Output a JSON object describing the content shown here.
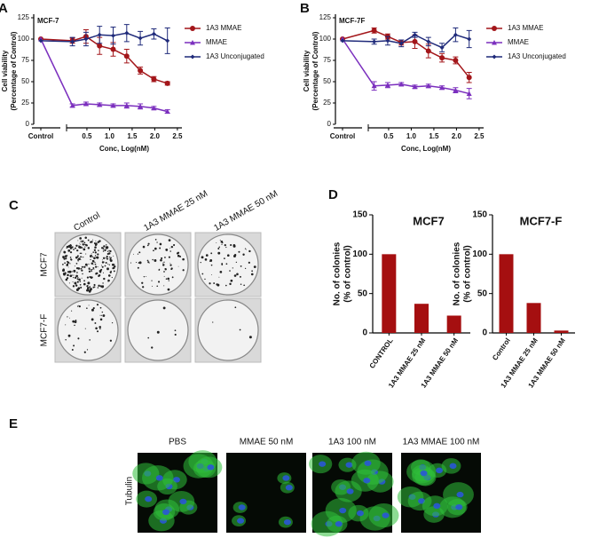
{
  "chart_data": [
    {
      "type": "line",
      "panel": "A",
      "title": "MCF-7",
      "xlabel": "Conc, Log(nM)",
      "ylabel": [
        "Cell viability",
        "(Percentage of Control)"
      ],
      "control_label": "Control",
      "x": [
        0.18,
        0.48,
        0.78,
        1.08,
        1.38,
        1.68,
        1.98,
        2.28
      ],
      "xlim": [
        0.05,
        2.6
      ],
      "xticks": [
        0.5,
        {
          "value": 1,
          "label": "1.0"
        },
        1.5,
        {
          "value": 2,
          "label": "2.0"
        },
        2.5
      ],
      "ylim": [
        0,
        125
      ],
      "yticks": [
        0,
        25,
        50,
        75,
        100,
        125
      ],
      "series": [
        {
          "name": "1A3 MMAE",
          "color": "#a3161a",
          "marker": "circle",
          "control": 100,
          "values": [
            98,
            103,
            92,
            88,
            80,
            63,
            53,
            48
          ],
          "errors": [
            3,
            8,
            10,
            8,
            8,
            4,
            3,
            2
          ]
        },
        {
          "name": "MMAE",
          "color": "#7b2fbe",
          "marker": "triangle",
          "control": 100,
          "values": [
            22,
            24,
            23,
            22,
            22,
            21,
            19,
            15
          ],
          "errors": [
            2,
            2,
            2,
            2,
            3,
            3,
            2,
            2
          ]
        },
        {
          "name": "1A3 Unconjugated",
          "color": "#1f2a7a",
          "marker": "diamond",
          "control": 98,
          "values": [
            97,
            100,
            105,
            104,
            107,
            101,
            106,
            98
          ],
          "errors": [
            5,
            8,
            10,
            10,
            10,
            8,
            6,
            15
          ]
        }
      ]
    },
    {
      "type": "line",
      "panel": "B",
      "title": "MCF-7F",
      "xlabel": "Conc, Log(nM)",
      "ylabel": [
        "Cell viability",
        "(Percentage of Control)"
      ],
      "control_label": "Control",
      "x": [
        0.18,
        0.48,
        0.78,
        1.08,
        1.38,
        1.68,
        1.98,
        2.28
      ],
      "xlim": [
        0.05,
        2.6
      ],
      "xticks": [
        0.5,
        {
          "value": 1,
          "label": "1.0"
        },
        1.5,
        {
          "value": 2,
          "label": "2.0"
        },
        2.5
      ],
      "ylim": [
        0,
        125
      ],
      "yticks": [
        0,
        25,
        50,
        75,
        100,
        125
      ],
      "series": [
        {
          "name": "1A3 MMAE",
          "color": "#a3161a",
          "marker": "circle",
          "control": 100,
          "values": [
            110,
            103,
            96,
            97,
            86,
            78,
            75,
            55
          ],
          "errors": [
            3,
            3,
            3,
            8,
            8,
            5,
            4,
            6
          ]
        },
        {
          "name": "MMAE",
          "color": "#7b2fbe",
          "marker": "triangle",
          "control": 100,
          "values": [
            45,
            46,
            47,
            44,
            45,
            43,
            40,
            36
          ],
          "errors": [
            5,
            3,
            2,
            2,
            2,
            2,
            3,
            6
          ]
        },
        {
          "name": "1A3 Unconjugated",
          "color": "#1f2a7a",
          "marker": "diamond",
          "control": 98,
          "values": [
            97,
            98,
            95,
            105,
            97,
            90,
            105,
            100
          ],
          "errors": [
            3,
            5,
            4,
            3,
            5,
            5,
            8,
            10
          ]
        }
      ]
    },
    {
      "type": "bar",
      "panel": "D",
      "title": "MCF7",
      "ylabel": [
        "No. of colonies",
        "(% of control)"
      ],
      "categories": [
        "CONTROL",
        "1A3 MMAE 25 nM",
        "1A3 MMAE 50 nM"
      ],
      "values": [
        100,
        37,
        22
      ],
      "color": "#a50f10",
      "ylim": [
        0,
        150
      ],
      "yticks": [
        0,
        50,
        100,
        150
      ]
    },
    {
      "type": "bar",
      "title": "MCF7-F",
      "ylabel": [
        "No. of  colonies",
        "(% of control)"
      ],
      "categories": [
        "Control",
        "1A3 MMAE 25 nM",
        "1A3 MMAE 50 nM"
      ],
      "values": [
        100,
        38,
        3
      ],
      "color": "#a50f10",
      "ylim": [
        0,
        150
      ],
      "yticks": [
        0,
        50,
        100,
        150
      ]
    }
  ],
  "colony_assay": {
    "panel": "C",
    "columns": [
      "Control",
      "1A3 MMAE  25 nM",
      "1A3 MMAE 50 nM"
    ],
    "rows": [
      "MCF7",
      "MCF7-F"
    ]
  },
  "microscopy": {
    "panel": "E",
    "columns": [
      "PBS",
      "MMAE 50 nM",
      "1A3 100 nM",
      "1A3 MMAE 100 nM"
    ],
    "row": "Tubulin"
  }
}
